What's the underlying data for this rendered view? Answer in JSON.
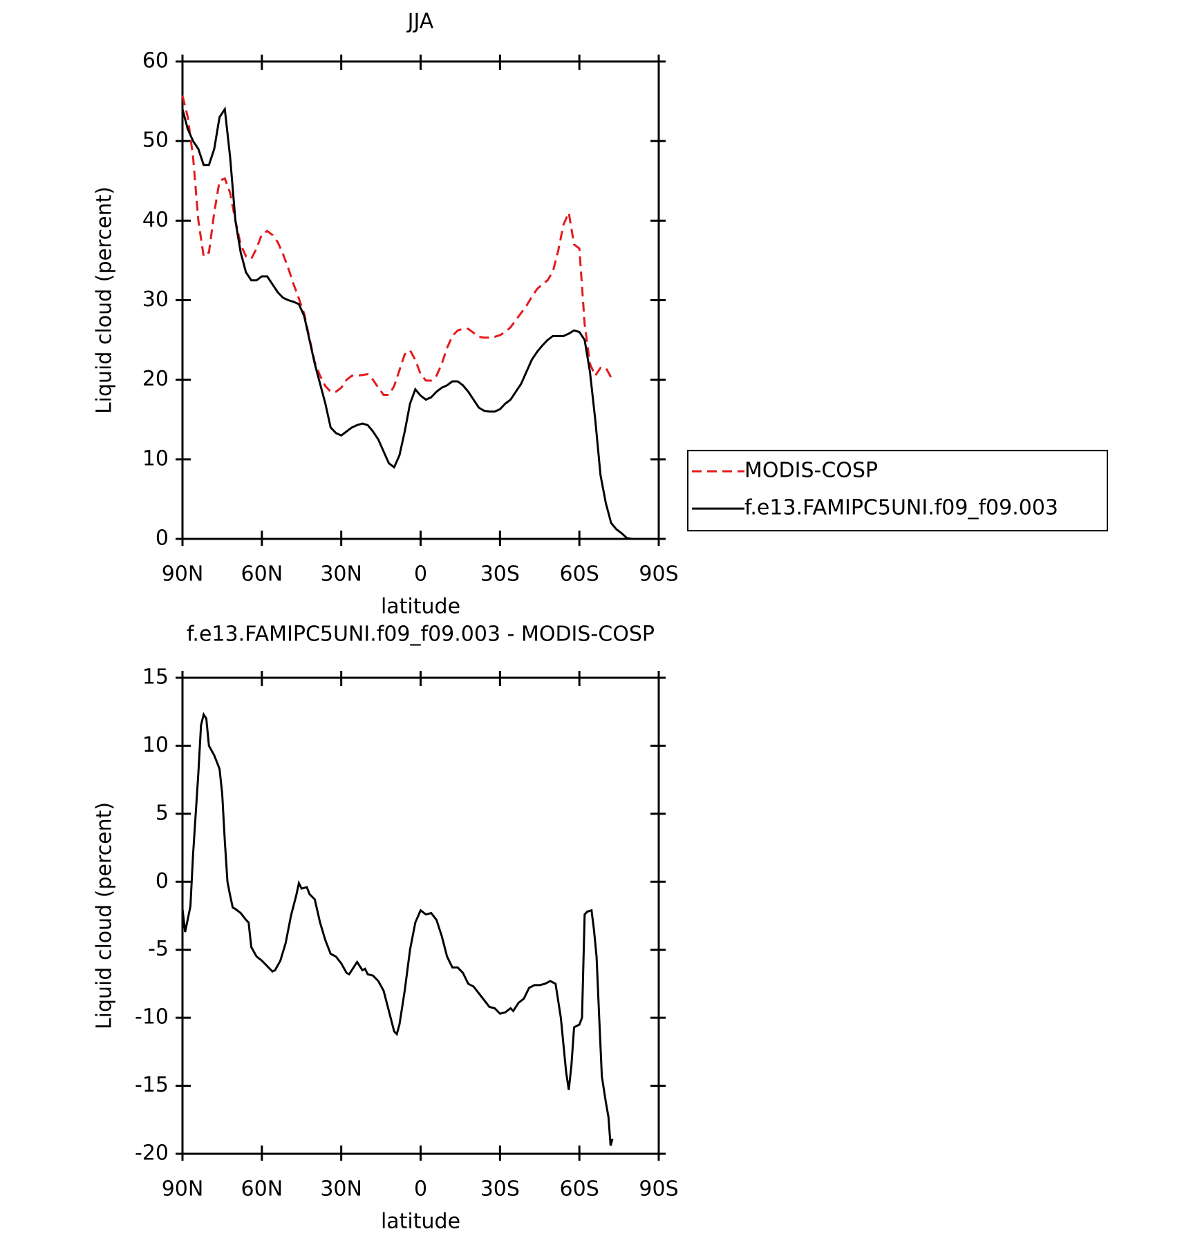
{
  "chart_data": [
    {
      "type": "line",
      "title": "JJA",
      "x_label": "latitude",
      "y_label": "Liquid cloud (percent)",
      "xlim": [
        90,
        -90
      ],
      "xticks": [
        {
          "value": 90,
          "label": "90N"
        },
        {
          "value": 60,
          "label": "60N"
        },
        {
          "value": 30,
          "label": "30N"
        },
        0,
        {
          "value": -30,
          "label": "30S"
        },
        {
          "value": -60,
          "label": "60S"
        },
        {
          "value": -90,
          "label": "90S"
        }
      ],
      "ylim": [
        0,
        60
      ],
      "yticks": [
        0,
        10,
        20,
        30,
        40,
        50,
        60
      ],
      "legend": "right",
      "x": [
        90,
        88,
        86,
        84,
        82,
        80,
        78,
        76,
        74,
        72,
        70,
        68,
        66,
        64,
        62,
        60,
        58,
        56,
        54,
        52,
        50,
        48,
        46,
        44,
        42,
        40,
        38,
        36,
        34,
        32,
        30,
        28,
        26,
        24,
        22,
        20,
        18,
        16,
        14,
        12,
        10,
        8,
        6,
        4,
        2,
        0,
        -2,
        -4,
        -6,
        -8,
        -10,
        -12,
        -14,
        -16,
        -18,
        -20,
        -22,
        -24,
        -26,
        -28,
        -30,
        -32,
        -34,
        -36,
        -38,
        -40,
        -42,
        -44,
        -46,
        -48,
        -50,
        -52,
        -54,
        -56,
        -58,
        -60,
        -62,
        -64,
        -66,
        -68,
        -70,
        -72,
        -74,
        -76,
        -78,
        -80
      ],
      "series": [
        {
          "name": "MODIS-COSP",
          "color": "#e41a1c",
          "line_style": "dashed",
          "values": [
            55.7,
            53,
            48,
            40,
            35.5,
            36,
            41,
            45,
            45.3,
            43.5,
            40,
            37,
            35.5,
            35.2,
            36.5,
            38.3,
            38.7,
            38.2,
            37.3,
            35.8,
            34,
            32,
            30.2,
            28.3,
            25.2,
            22.2,
            20.5,
            19.2,
            18.5,
            18.5,
            19,
            20,
            20.5,
            20.5,
            20.6,
            20.7,
            20,
            19,
            18.1,
            18.1,
            19.2,
            21.2,
            23.2,
            23.7,
            22.5,
            20.7,
            19.9,
            19.9,
            20.5,
            22,
            24,
            25.5,
            26.2,
            26.4,
            26.4,
            25.9,
            25.4,
            25.3,
            25.3,
            25.4,
            25.6,
            26,
            26.6,
            27.5,
            28.4,
            29.3,
            30.4,
            31.4,
            32,
            32.5,
            33.6,
            36.2,
            39.5,
            41,
            37,
            36.5,
            27,
            22,
            20.5,
            21.5,
            21.5,
            20.3,
            null,
            null,
            null,
            null
          ]
        },
        {
          "name": "f.e13.FAMIPC5UNI.f09_f09.003",
          "color": "#000000",
          "line_style": "solid",
          "values": [
            54,
            51.5,
            50,
            49,
            47,
            47,
            49,
            53,
            54,
            48,
            40,
            36,
            33.5,
            32.5,
            32.5,
            33,
            33,
            32,
            31,
            30.3,
            30,
            29.8,
            29.5,
            28,
            25,
            22,
            19.5,
            17,
            14,
            13.3,
            13,
            13.5,
            14,
            14.3,
            14.5,
            14.3,
            13.5,
            12.5,
            11,
            9.5,
            9,
            10.5,
            13.5,
            17,
            18.8,
            18,
            17.5,
            17.8,
            18.5,
            19,
            19.3,
            19.8,
            19.8,
            19.3,
            18.5,
            17.5,
            16.5,
            16.1,
            16,
            16,
            16.3,
            17,
            17.5,
            18.5,
            19.5,
            21,
            22.5,
            23.5,
            24.3,
            25,
            25.5,
            25.5,
            25.5,
            25.8,
            26.2,
            26,
            25,
            21,
            15,
            8,
            4.5,
            2,
            1.2,
            0.7,
            0.1,
            0
          ]
        }
      ]
    },
    {
      "type": "line",
      "title": "f.e13.FAMIPC5UNI.f09_f09.003 - MODIS-COSP",
      "x_label": "latitude",
      "y_label": "Liquid cloud (percent)",
      "xlim": [
        90,
        -90
      ],
      "xticks": [
        {
          "value": 90,
          "label": "90N"
        },
        {
          "value": 60,
          "label": "60N"
        },
        {
          "value": 30,
          "label": "30N"
        },
        0,
        {
          "value": -30,
          "label": "30S"
        },
        {
          "value": -60,
          "label": "60S"
        },
        {
          "value": -90,
          "label": "90S"
        }
      ],
      "ylim": [
        -20,
        15
      ],
      "yticks": [
        -20,
        -15,
        -10,
        -5,
        0,
        5,
        10,
        15
      ],
      "x": [
        90,
        89,
        87,
        86,
        84,
        83,
        82,
        81,
        80,
        78,
        76,
        75,
        74,
        73,
        72,
        71,
        70,
        68,
        66,
        65,
        64,
        62,
        60,
        58,
        56,
        55,
        53,
        51,
        49,
        47,
        46,
        45,
        43,
        42,
        40,
        38,
        36,
        34,
        32,
        30,
        28,
        27,
        25,
        24,
        22,
        21,
        20,
        18,
        16,
        14,
        12,
        10,
        9,
        8,
        6,
        4,
        2,
        0,
        -2,
        -4,
        -6,
        -8,
        -10,
        -12,
        -14,
        -16,
        -18,
        -20,
        -22,
        -24,
        -26,
        -28,
        -30,
        -32,
        -34,
        -35,
        -37,
        -39,
        -41,
        -43,
        -45,
        -47,
        -49,
        -51,
        -53,
        -55,
        -56,
        -57,
        -58,
        -60,
        -61,
        -62,
        -63,
        -64.6,
        -65.5,
        -66.5,
        -67.5,
        -68.5,
        -70,
        -71,
        -71.8,
        -72.5
      ],
      "series": [
        {
          "color": "#000000",
          "line_style": "solid",
          "values": [
            -2,
            -3.7,
            -1.8,
            2,
            8,
            11.5,
            12.3,
            12,
            10,
            9.3,
            8.3,
            6.5,
            3,
            0,
            -1,
            -1.9,
            -2,
            -2.3,
            -2.8,
            -3,
            -4.8,
            -5.5,
            -5.8,
            -6.2,
            -6.6,
            -6.5,
            -5.8,
            -4.5,
            -2.5,
            -1,
            -0.1,
            -0.5,
            -0.4,
            -0.9,
            -1.3,
            -3,
            -4.3,
            -5.3,
            -5.5,
            -6,
            -6.7,
            -6.8,
            -6.2,
            -5.9,
            -6.5,
            -6.4,
            -6.8,
            -6.9,
            -7.3,
            -8,
            -9.5,
            -11,
            -11.2,
            -10.5,
            -8,
            -5,
            -3,
            -2.1,
            -2.4,
            -2.3,
            -2.8,
            -4,
            -5.5,
            -6.3,
            -6.3,
            -6.7,
            -7.5,
            -7.7,
            -8.2,
            -8.7,
            -9.2,
            -9.3,
            -9.7,
            -9.6,
            -9.3,
            -9.5,
            -8.9,
            -8.6,
            -7.8,
            -7.6,
            -7.6,
            -7.5,
            -7.3,
            -7.5,
            -10,
            -14,
            -15.3,
            -13.5,
            -10.7,
            -10.5,
            -10,
            -2.4,
            -2.2,
            -2.1,
            -3.5,
            -5.5,
            -10,
            -14.3,
            -16.2,
            -17.3,
            -19.4,
            -18.9
          ]
        }
      ]
    }
  ]
}
